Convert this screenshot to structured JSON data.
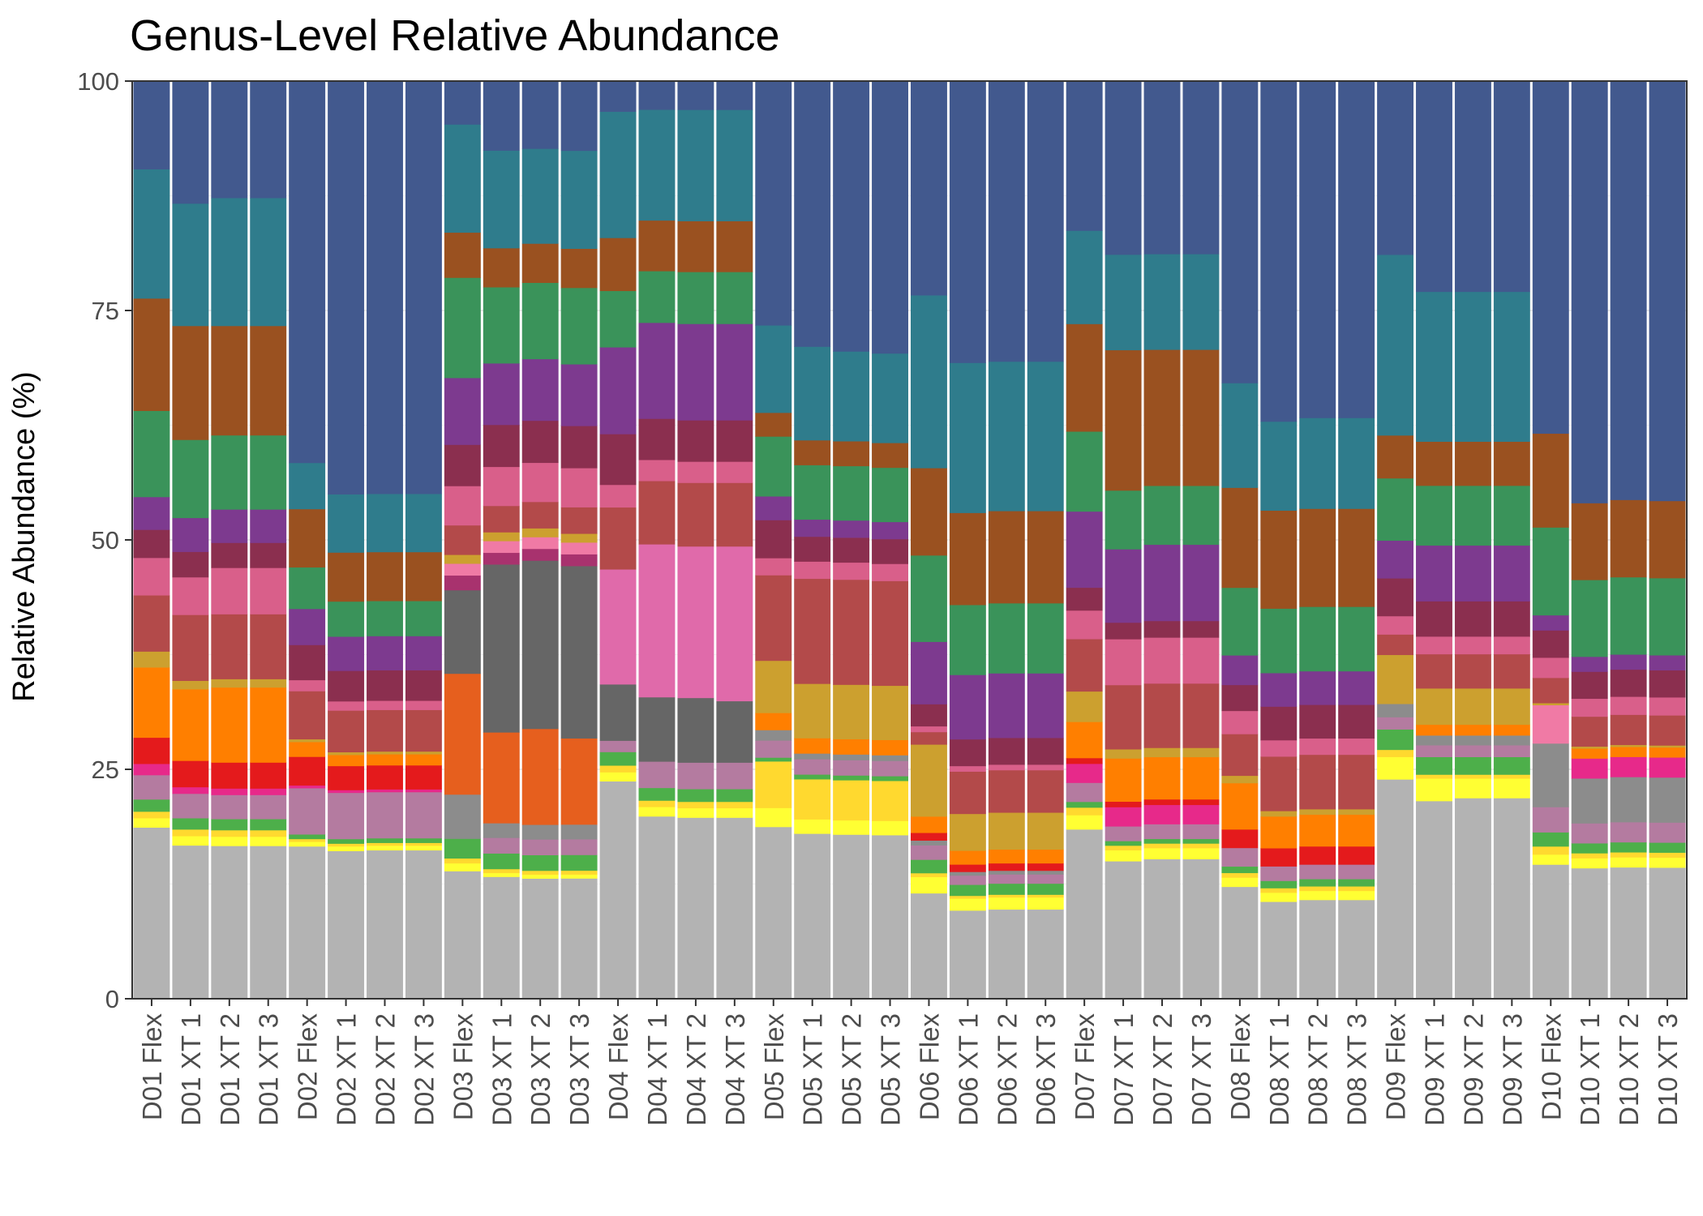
{
  "chart_data": {
    "type": "bar",
    "stacked": true,
    "title": "Genus-Level Relative Abundance",
    "xlabel": "",
    "ylabel": "Relative Abundance (%)",
    "ylim": [
      0,
      100
    ],
    "yticks": [
      0,
      25,
      50,
      75,
      100
    ],
    "grid": true,
    "legend": "none",
    "categories": [
      "D01 Flex",
      "D01 XT 1",
      "D01 XT 2",
      "D01 XT 3",
      "D02 Flex",
      "D02 XT 1",
      "D02 XT 2",
      "D02 XT 3",
      "D03 Flex",
      "D03 XT 1",
      "D03 XT 2",
      "D03 XT 3",
      "D04 Flex",
      "D04 XT 1",
      "D04 XT 2",
      "D04 XT 3",
      "D05 Flex",
      "D05 XT 1",
      "D05 XT 2",
      "D05 XT 3",
      "D06 Flex",
      "D06 XT 1",
      "D06 XT 2",
      "D06 XT 3",
      "D07 Flex",
      "D07 XT 1",
      "D07 XT 2",
      "D07 XT 3",
      "D08 Flex",
      "D08 XT 1",
      "D08 XT 2",
      "D08 XT 3",
      "D09 Flex",
      "D09 XT 1",
      "D09 XT 2",
      "D09 XT 3",
      "D10 Flex",
      "D10 XT 1",
      "D10 XT 2",
      "D10 XT 3"
    ],
    "layer_colors": [
      "#B3B3B3",
      "#FFFF33",
      "#FFD92F",
      "#4DAF4A",
      "#B47BA0",
      "#8C8C8C",
      "#E7298A",
      "#E41A1C",
      "#FF7F00",
      "#E65F1E",
      "#666666",
      "#A8326E",
      "#E06AAA",
      "#F07AA5",
      "#CCA02F",
      "#B34A4A",
      "#D95F8A",
      "#8B2F4F",
      "#7D3A8F",
      "#3A935A",
      "#9A5120",
      "#2F7C8C",
      "#42598E"
    ],
    "series": [
      {
        "values": [
          18.3,
          16.3,
          16.5,
          16.5,
          16.5,
          16.0,
          16.1,
          16.1,
          13.0,
          12.5,
          12.3,
          12.3,
          19.3,
          17.3,
          17.1,
          17.1,
          18.1,
          17.3,
          17.2,
          17.2,
          11.0,
          9.6,
          9.7,
          9.7,
          17.8,
          15.0,
          15.2,
          15.2,
          12.1,
          10.7,
          10.9,
          10.9,
          21.5,
          20.2,
          20.5,
          20.5,
          13.3,
          13.1,
          13.1,
          13.1
        ]
      },
      {
        "values": [
          1.0,
          1.0,
          1.0,
          1.0,
          0.5,
          0.5,
          0.5,
          0.5,
          0.8,
          0.4,
          0.4,
          0.4,
          0.8,
          0.9,
          0.9,
          0.9,
          2.0,
          1.5,
          1.5,
          1.5,
          1.7,
          1.3,
          1.3,
          1.3,
          1.5,
          1.2,
          1.2,
          1.2,
          1.0,
          1.0,
          1.0,
          1.0,
          2.2,
          2.3,
          2.0,
          2.0,
          1.0,
          1.0,
          1.0,
          1.0
        ]
      },
      {
        "values": [
          0.7,
          0.7,
          0.7,
          0.7,
          0.3,
          0.3,
          0.3,
          0.3,
          0.5,
          0.4,
          0.4,
          0.4,
          0.6,
          0.6,
          0.6,
          0.6,
          4.9,
          4.2,
          4.2,
          4.2,
          0.4,
          0.3,
          0.3,
          0.3,
          0.8,
          0.5,
          0.5,
          0.5,
          0.5,
          0.5,
          0.5,
          0.5,
          0.7,
          0.4,
          0.4,
          0.4,
          0.8,
          0.5,
          0.5,
          0.5
        ]
      },
      {
        "values": [
          1.3,
          1.2,
          1.2,
          1.2,
          0.5,
          0.5,
          0.5,
          0.5,
          2.0,
          1.6,
          1.6,
          1.6,
          1.2,
          1.2,
          1.2,
          1.2,
          0.4,
          0.5,
          0.5,
          0.5,
          1.4,
          1.2,
          1.2,
          1.2,
          0.6,
          0.5,
          0.5,
          0.5,
          0.7,
          0.8,
          0.8,
          0.8,
          2.0,
          1.8,
          1.8,
          1.8,
          1.4,
          1.0,
          1.0,
          1.0
        ]
      },
      {
        "values": [
          2.6,
          2.6,
          2.6,
          2.6,
          5.0,
          5.0,
          5.0,
          5.0,
          0.0,
          1.6,
          1.6,
          1.6,
          1.0,
          2.5,
          2.5,
          2.5,
          1.8,
          1.6,
          1.6,
          1.6,
          1.5,
          1.0,
          1.0,
          1.0,
          2.0,
          1.6,
          1.6,
          1.6,
          2.0,
          1.6,
          1.6,
          1.6,
          1.2,
          1.2,
          1.2,
          1.2,
          2.5,
          2.0,
          2.0,
          2.0
        ]
      },
      {
        "values": [
          0,
          0,
          0,
          0,
          0,
          0,
          0,
          0,
          4.5,
          1.5,
          1.5,
          1.5,
          0,
          0,
          0,
          0,
          1.1,
          0.6,
          0.6,
          0.6,
          0.5,
          0.4,
          0.4,
          0.4,
          0,
          0,
          0,
          0,
          0,
          0,
          0,
          0,
          1.3,
          1.0,
          1.0,
          1.0,
          6.3,
          4.5,
          4.5,
          4.5
        ]
      },
      {
        "values": [
          1.2,
          0.7,
          0.7,
          0.7,
          0.3,
          0.3,
          0.3,
          0.3,
          0.0,
          0.0,
          0.0,
          0.0,
          0.0,
          0.0,
          0.0,
          0.0,
          0.0,
          0.0,
          0.0,
          0.0,
          0.0,
          0.0,
          0.0,
          0.0,
          2.0,
          2.1,
          2.1,
          2.1,
          0.0,
          0.0,
          0.0,
          0.0,
          0.0,
          0.0,
          0.0,
          0.0,
          0.0,
          2.0,
          2.0,
          2.0
        ]
      },
      {
        "values": [
          2.8,
          2.8,
          2.8,
          2.8,
          3.1,
          2.6,
          2.6,
          2.6,
          0.0,
          0.0,
          0.0,
          0.0,
          0.0,
          0.0,
          0.0,
          0.0,
          0.0,
          0.0,
          0.0,
          0.0,
          0.8,
          0.8,
          0.8,
          0.8,
          0.6,
          0.6,
          0.6,
          0.6,
          2.0,
          2.0,
          2.0,
          2.0,
          0.0,
          0.0,
          0.0,
          0.0,
          0.0,
          0.0,
          0.0,
          0.0
        ]
      },
      {
        "values": [
          7.5,
          7.6,
          8.1,
          8.1,
          1.6,
          1.2,
          1.2,
          1.2,
          0.0,
          0.0,
          0.0,
          0.0,
          0.0,
          0.0,
          0.0,
          0.0,
          1.8,
          1.6,
          1.6,
          1.6,
          1.7,
          1.5,
          1.5,
          1.5,
          3.8,
          4.7,
          4.6,
          4.6,
          5.0,
          3.5,
          3.5,
          3.5,
          0.0,
          1.1,
          1.1,
          1.1,
          0.0,
          1.0,
          1.0,
          1.0
        ]
      },
      {
        "values": [
          0,
          0,
          0,
          0,
          0,
          0,
          0,
          0,
          12.3,
          9.3,
          9.8,
          8.8,
          0,
          0,
          0,
          0,
          0,
          0,
          0,
          0,
          0,
          0,
          0,
          0,
          0,
          0,
          0,
          0,
          0,
          0,
          0,
          0,
          0,
          0,
          0,
          0,
          0,
          0,
          0,
          0
        ]
      },
      {
        "values": [
          0,
          0,
          0,
          0,
          0,
          0,
          0,
          0,
          8.5,
          17.2,
          17.2,
          17.6,
          5.0,
          6.1,
          6.1,
          5.8,
          0,
          0,
          0,
          0,
          0,
          0,
          0,
          0,
          0,
          0,
          0,
          0,
          0,
          0,
          0,
          0,
          0,
          0,
          0,
          0,
          0,
          0,
          0,
          0
        ]
      },
      {
        "values": [
          0,
          0,
          0,
          0,
          0,
          0,
          0,
          0,
          1.5,
          1.2,
          1.2,
          1.2,
          0,
          0,
          0,
          0,
          0,
          0,
          0,
          0,
          0,
          0,
          0,
          0,
          0,
          0,
          0,
          0,
          0,
          0,
          0,
          0,
          0,
          0,
          0,
          0,
          0,
          0,
          0,
          0
        ]
      },
      {
        "values": [
          0,
          0,
          0,
          0,
          0,
          0,
          0,
          0,
          0,
          0,
          0,
          0,
          10.2,
          14.5,
          14.3,
          14.6,
          0,
          0,
          0,
          0,
          0,
          0,
          0,
          0,
          0,
          0,
          0,
          0,
          0,
          0,
          0,
          0,
          0,
          0,
          0,
          0,
          0,
          0,
          0,
          0
        ]
      },
      {
        "values": [
          0,
          0,
          0,
          0,
          0,
          0,
          0,
          0,
          1.2,
          1.2,
          1.2,
          1.2,
          0,
          0,
          0,
          0,
          0,
          0,
          0,
          0,
          0,
          0,
          0,
          0,
          0,
          0,
          0,
          0,
          0,
          0,
          0,
          0,
          0,
          0,
          0,
          0,
          3.8,
          0,
          0,
          0
        ]
      },
      {
        "values": [
          1.7,
          0.9,
          0.9,
          0.9,
          0.3,
          0.3,
          0.3,
          0.3,
          0.9,
          0.9,
          0.9,
          0.9,
          0,
          0,
          0,
          0,
          5.5,
          5.7,
          5.7,
          5.7,
          7.5,
          4.0,
          4.0,
          4.0,
          3.2,
          1.0,
          1.0,
          1.0,
          0.8,
          0.6,
          0.6,
          0.6,
          4.8,
          3.7,
          3.7,
          3.7,
          0.2,
          0.2,
          0.2,
          0.2
        ]
      },
      {
        "values": [
          6.0,
          7.0,
          7.0,
          7.0,
          5.2,
          4.5,
          4.5,
          4.5,
          3.0,
          2.7,
          2.7,
          2.7,
          5.5,
          6.0,
          6.0,
          6.0,
          9.0,
          11.0,
          11.0,
          11.0,
          1.3,
          4.6,
          4.6,
          4.6,
          5.5,
          7.0,
          7.0,
          7.0,
          4.5,
          6.0,
          6.0,
          6.0,
          2.0,
          3.5,
          3.5,
          3.5,
          2.5,
          3.0,
          3.0,
          3.0
        ]
      },
      {
        "values": [
          4.0,
          4.0,
          5.0,
          5.0,
          1.2,
          1.0,
          1.0,
          1.0,
          4.0,
          4.0,
          4.0,
          4.0,
          2.0,
          2.0,
          2.0,
          2.0,
          1.8,
          1.8,
          1.8,
          1.8,
          0.6,
          0.6,
          0.6,
          0.6,
          3.0,
          5.0,
          5.0,
          5.0,
          2.5,
          1.8,
          1.8,
          1.8,
          1.8,
          1.8,
          1.8,
          1.8,
          2.0,
          1.8,
          1.8,
          1.8
        ]
      },
      {
        "values": [
          3.0,
          2.7,
          2.7,
          2.7,
          3.8,
          3.3,
          3.3,
          3.3,
          4.2,
          4.3,
          4.3,
          4.3,
          4.5,
          3.9,
          3.9,
          3.9,
          4.0,
          2.6,
          2.6,
          2.6,
          2.3,
          2.9,
          2.9,
          2.9,
          2.4,
          1.8,
          1.8,
          1.8,
          2.8,
          3.7,
          3.7,
          3.7,
          3.7,
          3.6,
          3.6,
          3.6,
          2.7,
          2.7,
          2.7,
          2.7
        ]
      },
      {
        "values": [
          3.5,
          3.6,
          3.6,
          3.6,
          3.9,
          3.7,
          3.7,
          3.7,
          6.8,
          6.3,
          6.3,
          6.3,
          7.7,
          9.1,
          9.1,
          9.1,
          2.5,
          1.8,
          1.8,
          1.8,
          6.5,
          7.0,
          7.0,
          7.0,
          8.0,
          8.0,
          8.3,
          8.3,
          3.2,
          3.7,
          3.7,
          3.7,
          3.7,
          5.7,
          5.7,
          5.7,
          1.5,
          1.5,
          1.5,
          1.5
        ]
      },
      {
        "values": [
          9.2,
          8.3,
          8.0,
          8.0,
          4.5,
          3.8,
          3.8,
          3.8,
          10.2,
          7.8,
          7.8,
          7.8,
          5.0,
          4.9,
          4.9,
          4.9,
          6.3,
          5.7,
          5.7,
          5.7,
          9.0,
          7.6,
          7.6,
          7.6,
          8.4,
          6.4,
          6.4,
          6.4,
          7.3,
          7.1,
          7.1,
          7.1,
          6.1,
          6.1,
          6.1,
          6.1,
          8.7,
          7.7,
          7.7,
          7.7
        ]
      },
      {
        "values": [
          12.0,
          12.1,
          11.8,
          11.8,
          6.3,
          5.3,
          5.3,
          5.3,
          4.6,
          4.0,
          4.0,
          4.0,
          4.7,
          4.8,
          4.8,
          4.8,
          2.5,
          2.6,
          2.6,
          2.6,
          9.1,
          10.0,
          10.0,
          10.0,
          11.3,
          15.3,
          14.8,
          14.8,
          10.8,
          10.8,
          10.8,
          10.8,
          4.2,
          4.5,
          4.5,
          4.5,
          9.3,
          7.7,
          7.7,
          7.7
        ]
      },
      {
        "values": [
          13.8,
          13.0,
          13.8,
          13.8,
          5.0,
          6.3,
          6.3,
          6.3,
          11.0,
          10.0,
          9.7,
          10.0,
          11.2,
          10.5,
          10.5,
          10.5,
          9.2,
          9.8,
          9.4,
          9.4,
          18.0,
          16.3,
          16.2,
          16.2,
          9.8,
          10.4,
          10.4,
          10.4,
          11.3,
          9.8,
          10.0,
          10.0,
          17.7,
          15.3,
          15.3,
          15.3,
          0.0,
          0.0,
          0.0,
          0.0
        ]
      },
      {
        "values": [
          9.4,
          13.0,
          12.6,
          12.6,
          41.3,
          44.7,
          44.7,
          44.7,
          4.4,
          7.1,
          6.9,
          7.1,
          2.7,
          2.7,
          2.7,
          2.7,
          25.7,
          27.8,
          28.3,
          28.6,
          22.3,
          30.6,
          30.4,
          30.4,
          15.7,
          18.9,
          18.8,
          18.8,
          32.6,
          37.5,
          37.1,
          37.1,
          17.0,
          21.5,
          21.5,
          21.5,
          34.9,
          42.3,
          41.7,
          41.9
        ]
      }
    ]
  }
}
